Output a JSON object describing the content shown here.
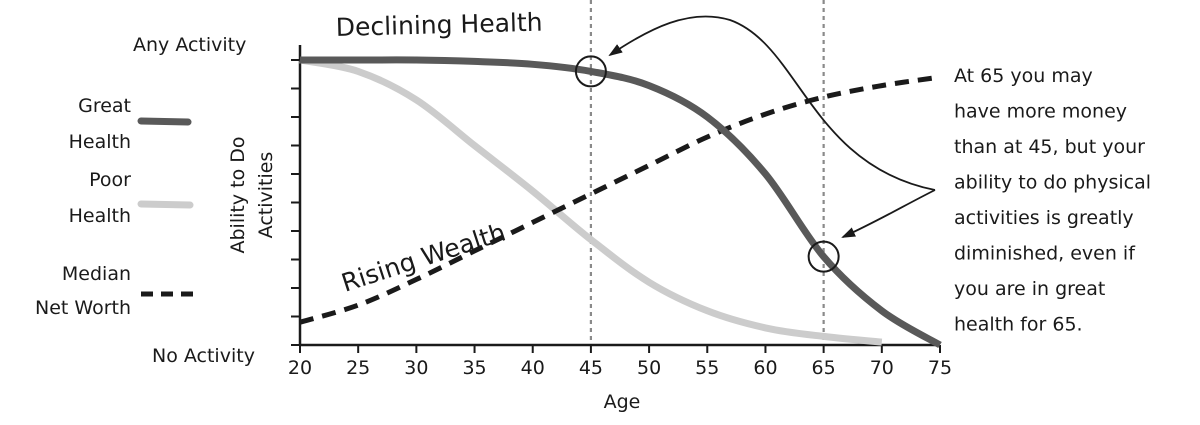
{
  "chart_data": {
    "type": "line",
    "xlabel": "Age",
    "ylabel": "Ability to Do Activities",
    "ylabel_lines": [
      "Ability to Do",
      "Activities"
    ],
    "y_top_label": "Any Activity",
    "y_bottom_label": "No Activity",
    "xlim": [
      20,
      75
    ],
    "ylim": [
      0,
      1
    ],
    "x_ticks": [
      20,
      25,
      30,
      35,
      40,
      45,
      50,
      55,
      60,
      65,
      70,
      75
    ],
    "reference_lines_x": [
      45,
      65
    ],
    "series": [
      {
        "name": "Great Health",
        "legend_lines": [
          "Great",
          "Health"
        ],
        "style": "solid",
        "color": "#595959",
        "x": [
          20,
          25,
          30,
          35,
          40,
          45,
          50,
          55,
          60,
          65,
          70,
          75
        ],
        "y": [
          1.0,
          1.0,
          1.0,
          0.995,
          0.985,
          0.96,
          0.91,
          0.8,
          0.6,
          0.31,
          0.12,
          0.0
        ]
      },
      {
        "name": "Poor Health",
        "legend_lines": [
          "Poor",
          "Health"
        ],
        "style": "solid",
        "color": "#cccccc",
        "x": [
          20,
          25,
          30,
          35,
          40,
          45,
          50,
          55,
          60,
          65,
          70
        ],
        "y": [
          1.0,
          0.96,
          0.86,
          0.7,
          0.54,
          0.37,
          0.22,
          0.12,
          0.06,
          0.03,
          0.01
        ]
      },
      {
        "name": "Median Net Worth",
        "legend_lines": [
          "Median",
          "Net Worth"
        ],
        "style": "dashed",
        "color": "#1a1a1a",
        "x": [
          20,
          25,
          30,
          35,
          40,
          45,
          50,
          55,
          60,
          65,
          70,
          75
        ],
        "y": [
          0.08,
          0.14,
          0.23,
          0.33,
          0.43,
          0.53,
          0.63,
          0.73,
          0.81,
          0.87,
          0.91,
          0.94
        ]
      }
    ],
    "annotations": [
      {
        "text": "Declining Health"
      },
      {
        "text": "Rising Wealth"
      },
      {
        "text_lines": [
          "At 65 you may",
          "have more money",
          "than at 45, but your",
          "ability to do physical",
          "activities is greatly",
          "diminished, even if",
          "you are in great",
          "health for 65."
        ]
      }
    ],
    "highlight_points": [
      {
        "series": "Great Health",
        "x": 45
      },
      {
        "series": "Great Health",
        "x": 65
      }
    ]
  }
}
